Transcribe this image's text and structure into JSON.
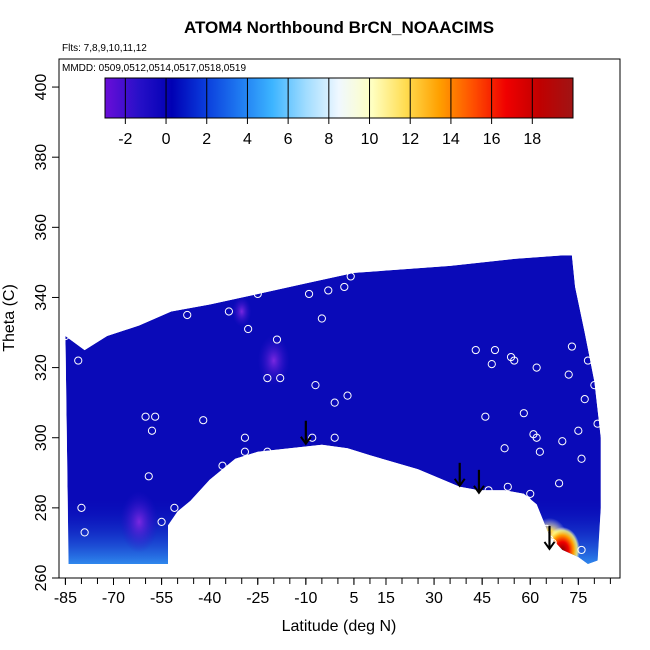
{
  "chart_data": {
    "type": "heatmap",
    "title": "ATOM4 Northbound BrCN_NOAACIMS",
    "flights_note": "Flts: 7,8,9,10,11,12",
    "dates_note": "MMDD: 0509,0512,0514,0517,0518,0519",
    "xlabel": "Latitude (deg N)",
    "ylabel": "Theta (C)",
    "xlim": [
      -87,
      88
    ],
    "ylim": [
      260,
      408
    ],
    "x_ticks": [
      -85,
      -70,
      -55,
      -40,
      -25,
      -10,
      5,
      15,
      30,
      45,
      60,
      75
    ],
    "y_ticks": [
      260,
      280,
      300,
      320,
      340,
      360,
      380,
      400
    ],
    "colorbar": {
      "range": [
        -3,
        20
      ],
      "ticks": [
        -2,
        0,
        2,
        4,
        6,
        8,
        10,
        12,
        14,
        16,
        18
      ],
      "colors": [
        "#6a0dd8",
        "#2810c8",
        "#0000b4",
        "#0a3cdc",
        "#1e78f0",
        "#3cb4ff",
        "#a0dcff",
        "#f0f8ff",
        "#ffffc0",
        "#ffdc50",
        "#ffa000",
        "#ff5000",
        "#f00000",
        "#c00000",
        "#a01414"
      ]
    },
    "field_outline": [
      [
        -85,
        329
      ],
      [
        -79,
        325
      ],
      [
        -72,
        329
      ],
      [
        -62,
        332
      ],
      [
        -52,
        336
      ],
      [
        -40,
        338
      ],
      [
        -25,
        341
      ],
      [
        -10,
        344
      ],
      [
        5,
        347
      ],
      [
        20,
        348
      ],
      [
        35,
        349
      ],
      [
        55,
        351
      ],
      [
        70,
        352
      ],
      [
        73,
        352
      ],
      [
        74,
        343
      ],
      [
        77,
        330
      ],
      [
        80,
        316
      ],
      [
        82,
        300
      ],
      [
        82,
        280
      ],
      [
        81,
        265
      ],
      [
        78,
        264
      ],
      [
        75,
        266
      ],
      [
        70,
        268
      ],
      [
        66,
        272
      ],
      [
        62,
        281
      ],
      [
        58,
        284
      ],
      [
        52,
        285
      ],
      [
        48,
        285
      ],
      [
        44,
        285
      ],
      [
        38,
        286
      ],
      [
        25,
        291
      ],
      [
        10,
        295
      ],
      [
        3,
        297
      ],
      [
        -5,
        298
      ],
      [
        -15,
        297
      ],
      [
        -25,
        296
      ],
      [
        -32,
        294
      ],
      [
        -40,
        288
      ],
      [
        -46,
        282
      ],
      [
        -50,
        279
      ],
      [
        -53,
        275
      ],
      [
        -53,
        264
      ],
      [
        -70,
        264
      ],
      [
        -84,
        264
      ]
    ],
    "high_values": [
      {
        "lat": 70,
        "theta": 268,
        "value": 19,
        "radius_deg": 5.5
      },
      {
        "lat": 66,
        "theta": 270,
        "value": 15,
        "radius_deg": 6
      },
      {
        "lat": 60,
        "theta": 274,
        "value": 10,
        "radius_deg": 4
      }
    ],
    "low_values": [
      {
        "lat": -20,
        "theta": 322,
        "value": -1.5,
        "radius_deg": 5
      },
      {
        "lat": -62,
        "theta": 276,
        "value": -1.5,
        "radius_deg": 6
      },
      {
        "lat": -30,
        "theta": 336,
        "value": -1,
        "radius_deg": 3
      }
    ],
    "observation_points": [
      [
        -85,
        329
      ],
      [
        -81,
        322
      ],
      [
        -80,
        280
      ],
      [
        -79,
        273
      ],
      [
        -60,
        306
      ],
      [
        -57,
        306
      ],
      [
        -58,
        302
      ],
      [
        -59,
        289
      ],
      [
        -51,
        280
      ],
      [
        -55,
        276
      ],
      [
        -47,
        335
      ],
      [
        -42,
        305
      ],
      [
        -36,
        292
      ],
      [
        -34,
        336
      ],
      [
        -29,
        300
      ],
      [
        -29,
        296
      ],
      [
        -28,
        331
      ],
      [
        -25,
        341
      ],
      [
        -22,
        296
      ],
      [
        -22,
        317
      ],
      [
        -19,
        328
      ],
      [
        -18,
        317
      ],
      [
        -9,
        341
      ],
      [
        -8,
        300
      ],
      [
        -7,
        315
      ],
      [
        -5,
        334
      ],
      [
        -3,
        342
      ],
      [
        -1,
        310
      ],
      [
        -1,
        300
      ],
      [
        2,
        343
      ],
      [
        3,
        312
      ],
      [
        4,
        346
      ],
      [
        43,
        325
      ],
      [
        46,
        306
      ],
      [
        48,
        321
      ],
      [
        49,
        325
      ],
      [
        47,
        285
      ],
      [
        52,
        297
      ],
      [
        53,
        286
      ],
      [
        54,
        323
      ],
      [
        55,
        322
      ],
      [
        58,
        307
      ],
      [
        59,
        282
      ],
      [
        60,
        284
      ],
      [
        61,
        301
      ],
      [
        62,
        320
      ],
      [
        62,
        300
      ],
      [
        63,
        296
      ],
      [
        65,
        274
      ],
      [
        66,
        269
      ],
      [
        66,
        271
      ],
      [
        67,
        270
      ],
      [
        69,
        287
      ],
      [
        70,
        299
      ],
      [
        70,
        266
      ],
      [
        72,
        318
      ],
      [
        73,
        326
      ],
      [
        75,
        302
      ],
      [
        76,
        294
      ],
      [
        76,
        268
      ],
      [
        77,
        311
      ],
      [
        78,
        322
      ],
      [
        80,
        315
      ],
      [
        81,
        304
      ],
      [
        79,
        349
      ]
    ],
    "arrows": [
      {
        "lat": -10,
        "theta": 298
      },
      {
        "lat": 38,
        "theta": 286
      },
      {
        "lat": 44,
        "theta": 284
      },
      {
        "lat": 66,
        "theta": 268
      }
    ]
  }
}
